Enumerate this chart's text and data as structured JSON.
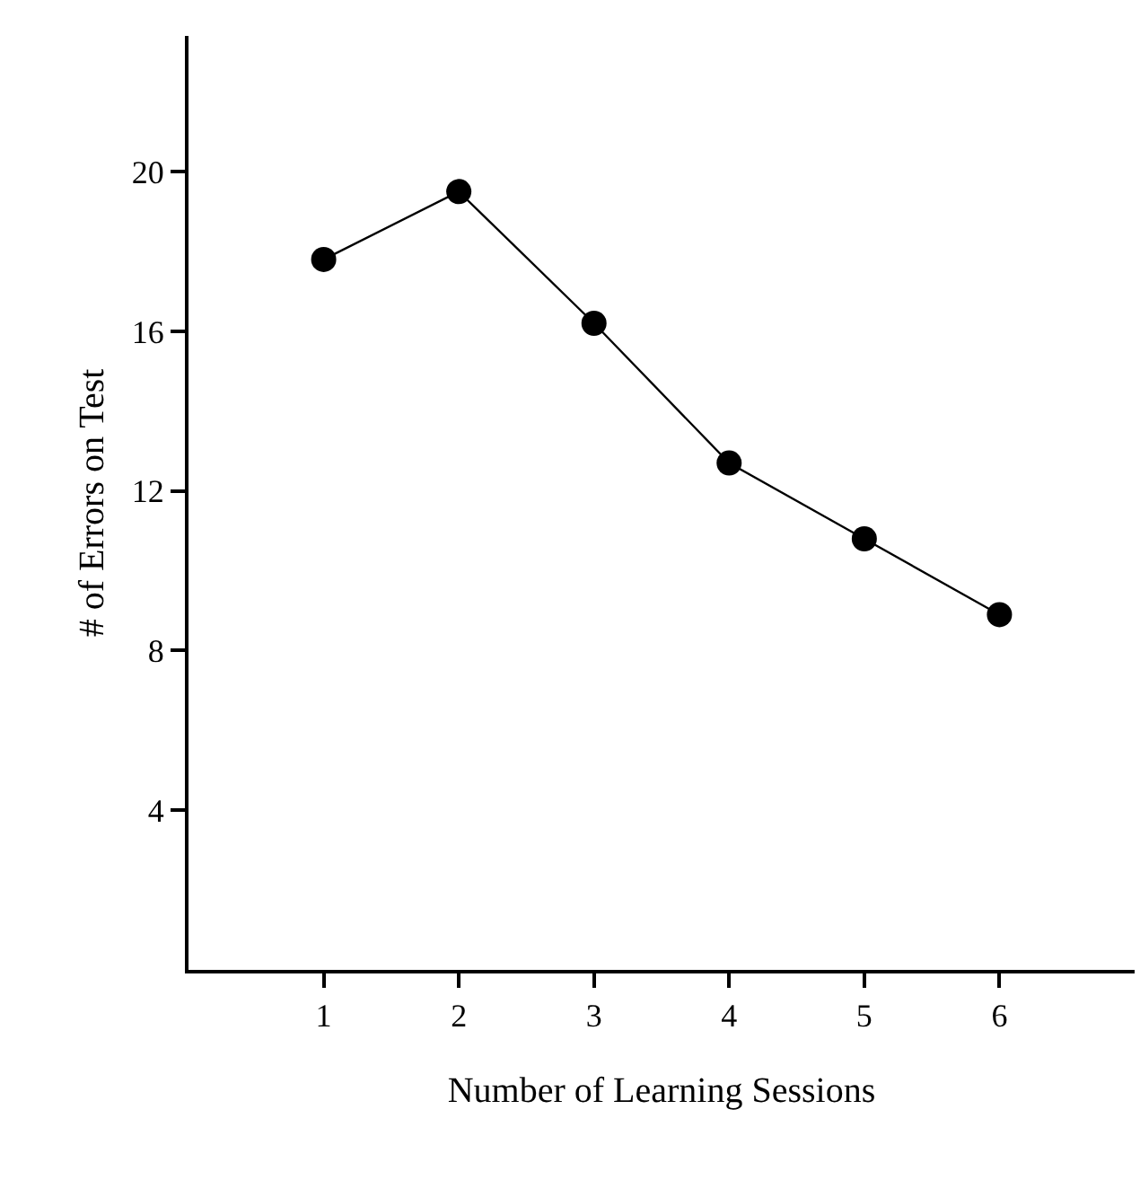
{
  "chart_data": {
    "type": "line",
    "xlabel": "Number of Learning Sessions",
    "ylabel": "# of Errors on Test",
    "x": [
      1,
      2,
      3,
      4,
      5,
      6
    ],
    "series": [
      {
        "color": "#000000",
        "values": [
          17.8,
          19.5,
          16.2,
          12.7,
          10.8,
          8.9
        ]
      }
    ],
    "xlim": [
      0,
      7
    ],
    "xticks": [
      1,
      2,
      3,
      4,
      5,
      6
    ],
    "ylim": [
      0,
      23.4
    ],
    "yticks": [
      4,
      8,
      12,
      16,
      20
    ],
    "marker": "circle",
    "line_style": "solid"
  }
}
